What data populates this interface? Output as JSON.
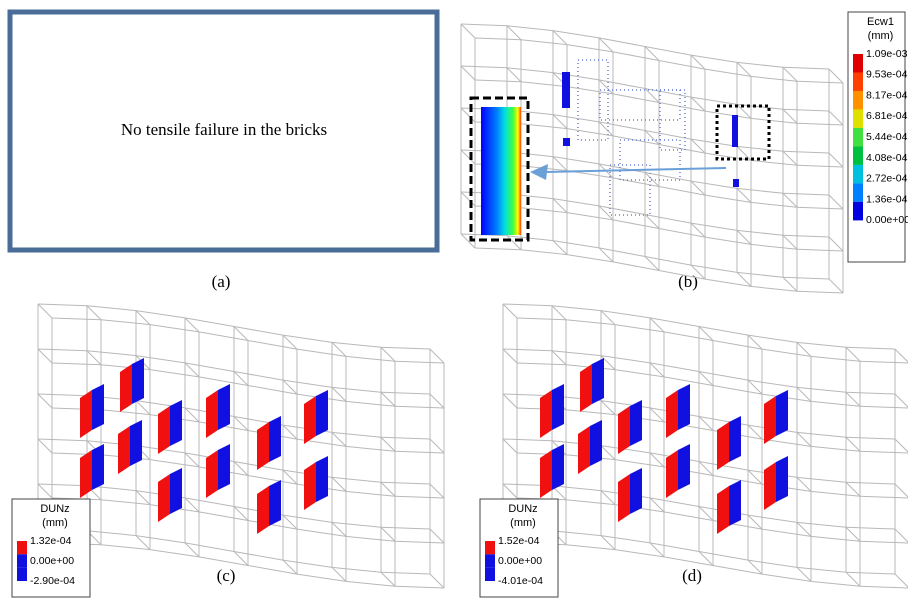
{
  "panels": [
    {
      "label": "(a)",
      "text": "No tensile failure in the bricks"
    },
    {
      "label": "(b)",
      "legend": {
        "title": "Ecw1",
        "unit": "(mm)",
        "entries": [
          "1.09e-03",
          "9.53e-04",
          "8.17e-04",
          "6.81e-04",
          "5.44e-04",
          "4.08e-04",
          "2.72e-04",
          "1.36e-04",
          "0.00e+00"
        ]
      }
    },
    {
      "label": "(c)",
      "legend": {
        "title": "DUNz",
        "unit": "(mm)",
        "entries": [
          "1.32e-04",
          "0.00e+00",
          "-2.90e-04"
        ]
      }
    },
    {
      "label": "(d)",
      "legend": {
        "title": "DUNz",
        "unit": "(mm)",
        "entries": [
          "1.52e-04",
          "0.00e+00",
          "-4.01e-04"
        ]
      }
    }
  ]
}
